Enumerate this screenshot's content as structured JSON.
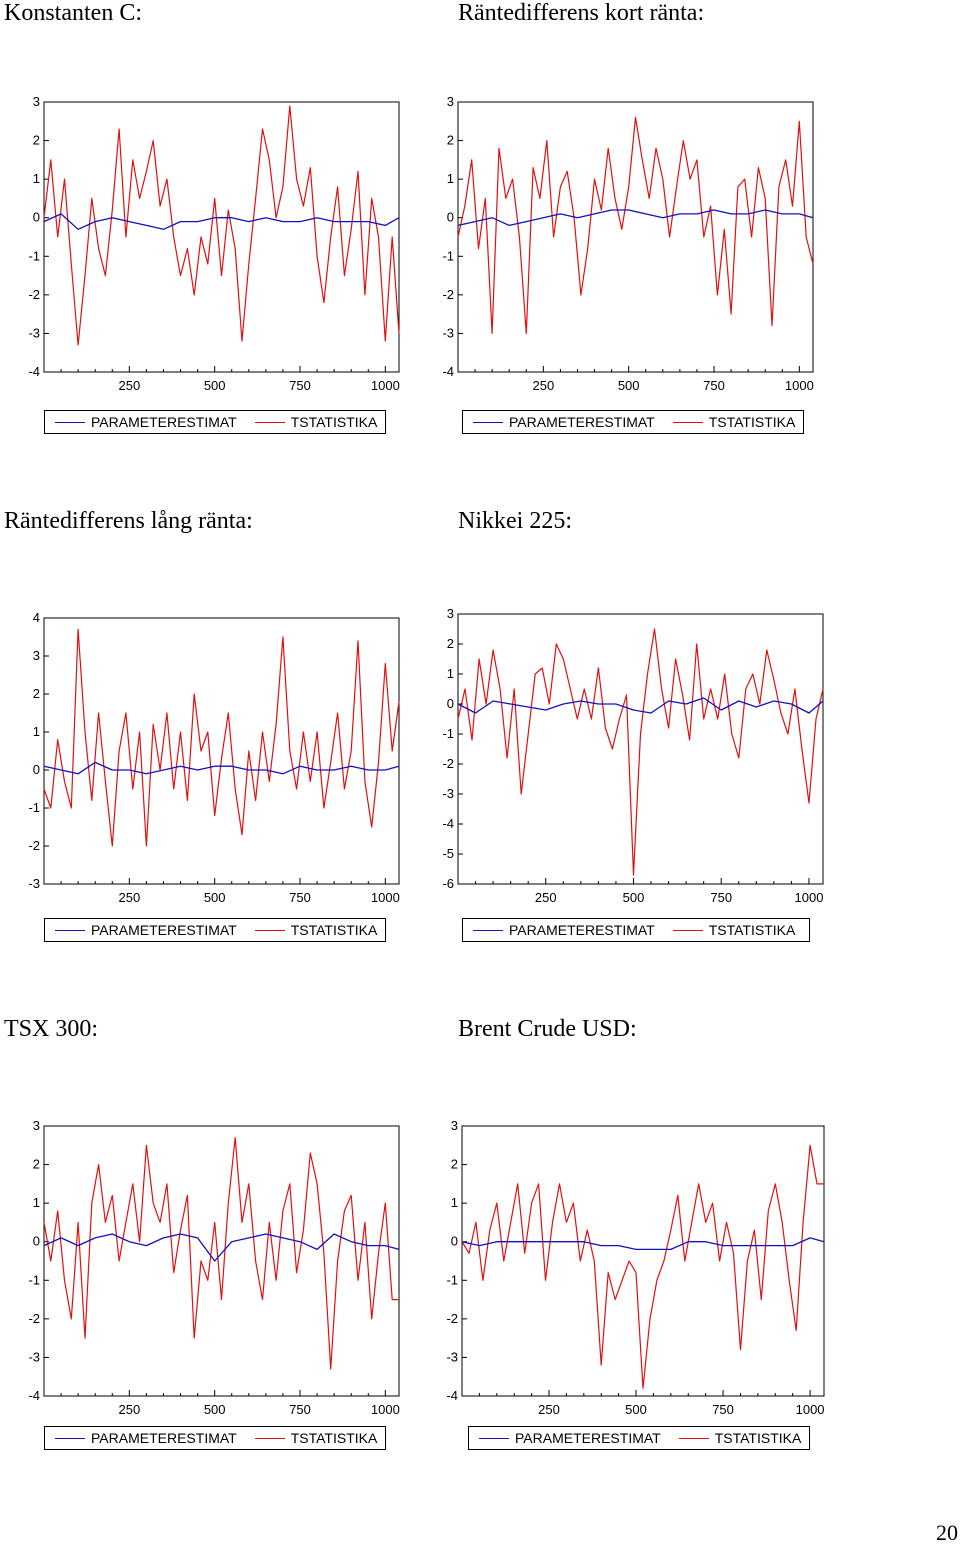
{
  "page": {
    "number": "20"
  },
  "legend": {
    "param_label": "PARAMETERESTIMAT",
    "tstat_label": "TSTATISTIKA"
  },
  "colors": {
    "param": "#1010c0",
    "tstat": "#e01010",
    "axis": "#000000"
  },
  "chart_data": [
    {
      "title": "Konstanten C:",
      "type": "line",
      "xticks": [
        250,
        500,
        750,
        1000
      ],
      "xlim": [
        0,
        1040
      ],
      "ylim": [
        -4,
        3
      ],
      "yticks": [
        3,
        2,
        1,
        0,
        -1,
        -2,
        -3,
        -4
      ],
      "series": [
        {
          "name": "PARAMETERESTIMAT",
          "x": [
            0,
            50,
            100,
            150,
            200,
            250,
            300,
            350,
            400,
            450,
            500,
            550,
            600,
            650,
            700,
            750,
            800,
            850,
            900,
            950,
            1000,
            1040
          ],
          "values": [
            -0.1,
            0.1,
            -0.3,
            -0.1,
            0.0,
            -0.1,
            -0.2,
            -0.3,
            -0.1,
            -0.1,
            0.0,
            0.0,
            -0.1,
            0.0,
            -0.1,
            -0.1,
            0.0,
            -0.1,
            -0.1,
            -0.1,
            -0.2,
            0.0
          ]
        },
        {
          "name": "TSTATISTIKA",
          "x": [
            0,
            20,
            40,
            60,
            80,
            100,
            120,
            140,
            160,
            180,
            200,
            220,
            240,
            260,
            280,
            300,
            320,
            340,
            360,
            380,
            400,
            420,
            440,
            460,
            480,
            500,
            520,
            540,
            560,
            580,
            600,
            620,
            640,
            660,
            680,
            700,
            720,
            740,
            760,
            780,
            800,
            820,
            840,
            860,
            880,
            900,
            920,
            940,
            960,
            980,
            1000,
            1020,
            1040
          ],
          "values": [
            0.0,
            1.5,
            -0.5,
            1.0,
            -1.2,
            -3.3,
            -1.5,
            0.5,
            -0.8,
            -1.5,
            0.2,
            2.3,
            -0.5,
            1.5,
            0.5,
            1.2,
            2.0,
            0.3,
            1.0,
            -0.5,
            -1.5,
            -0.8,
            -2.0,
            -0.5,
            -1.2,
            0.5,
            -1.5,
            0.2,
            -0.8,
            -3.2,
            -1.2,
            0.5,
            2.3,
            1.5,
            0.0,
            0.8,
            2.9,
            1.0,
            0.3,
            1.3,
            -1.0,
            -2.2,
            -0.5,
            0.8,
            -1.5,
            -0.3,
            1.2,
            -2.0,
            0.5,
            -0.5,
            -3.2,
            -0.5,
            -3.0
          ]
        }
      ]
    },
    {
      "title": "Räntedifferens kort ränta:",
      "type": "line",
      "xticks": [
        250,
        500,
        750,
        1000
      ],
      "xlim": [
        0,
        1040
      ],
      "ylim": [
        -4,
        3
      ],
      "yticks": [
        3,
        2,
        1,
        0,
        -1,
        -2,
        -3,
        -4
      ],
      "series": [
        {
          "name": "PARAMETERESTIMAT",
          "x": [
            0,
            50,
            100,
            150,
            200,
            250,
            300,
            350,
            400,
            450,
            500,
            550,
            600,
            650,
            700,
            750,
            800,
            850,
            900,
            950,
            1000,
            1040
          ],
          "values": [
            -0.2,
            -0.1,
            0.0,
            -0.2,
            -0.1,
            0.0,
            0.1,
            0.0,
            0.1,
            0.2,
            0.2,
            0.1,
            0.0,
            0.1,
            0.1,
            0.2,
            0.1,
            0.1,
            0.2,
            0.1,
            0.1,
            0.0
          ]
        },
        {
          "name": "TSTATISTIKA",
          "x": [
            0,
            20,
            40,
            60,
            80,
            100,
            120,
            140,
            160,
            180,
            200,
            220,
            240,
            260,
            280,
            300,
            320,
            340,
            360,
            380,
            400,
            420,
            440,
            460,
            480,
            500,
            520,
            540,
            560,
            580,
            600,
            620,
            640,
            660,
            680,
            700,
            720,
            740,
            760,
            780,
            800,
            820,
            840,
            860,
            880,
            900,
            920,
            940,
            960,
            980,
            1000,
            1020,
            1040
          ],
          "values": [
            -0.5,
            0.3,
            1.5,
            -0.8,
            0.5,
            -3.0,
            1.8,
            0.5,
            1.0,
            -0.5,
            -3.0,
            1.3,
            0.5,
            2.0,
            -0.5,
            0.8,
            1.2,
            0.0,
            -2.0,
            -0.8,
            1.0,
            0.2,
            1.8,
            0.5,
            -0.3,
            0.8,
            2.6,
            1.5,
            0.5,
            1.8,
            1.0,
            -0.5,
            0.8,
            2.0,
            1.0,
            1.5,
            -0.5,
            0.3,
            -2.0,
            -0.3,
            -2.5,
            0.8,
            1.0,
            -0.5,
            1.3,
            0.5,
            -2.8,
            0.8,
            1.5,
            0.3,
            2.5,
            -0.5,
            -1.2
          ]
        }
      ]
    },
    {
      "title": "Räntedifferens lång ränta:",
      "type": "line",
      "xticks": [
        250,
        500,
        750,
        1000
      ],
      "xlim": [
        0,
        1040
      ],
      "ylim": [
        -3,
        4
      ],
      "yticks": [
        4,
        3,
        2,
        1,
        0,
        -1,
        -2,
        -3
      ],
      "series": [
        {
          "name": "PARAMETERESTIMAT",
          "x": [
            0,
            50,
            100,
            150,
            200,
            250,
            300,
            350,
            400,
            450,
            500,
            550,
            600,
            650,
            700,
            750,
            800,
            850,
            900,
            950,
            1000,
            1040
          ],
          "values": [
            0.1,
            0.0,
            -0.1,
            0.2,
            0.0,
            0.0,
            -0.1,
            0.0,
            0.1,
            0.0,
            0.1,
            0.1,
            0.0,
            0.0,
            -0.1,
            0.1,
            0.0,
            0.0,
            0.1,
            0.0,
            0.0,
            0.1
          ]
        },
        {
          "name": "TSTATISTIKA",
          "x": [
            0,
            20,
            40,
            60,
            80,
            100,
            120,
            140,
            160,
            180,
            200,
            220,
            240,
            260,
            280,
            300,
            320,
            340,
            360,
            380,
            400,
            420,
            440,
            460,
            480,
            500,
            520,
            540,
            560,
            580,
            600,
            620,
            640,
            660,
            680,
            700,
            720,
            740,
            760,
            780,
            800,
            820,
            840,
            860,
            880,
            900,
            920,
            940,
            960,
            980,
            1000,
            1020,
            1040
          ],
          "values": [
            -0.5,
            -1.0,
            0.8,
            -0.3,
            -1.0,
            3.7,
            1.0,
            -0.8,
            1.5,
            -0.3,
            -2.0,
            0.5,
            1.5,
            -0.5,
            1.0,
            -2.0,
            1.2,
            0.0,
            1.5,
            -0.5,
            1.0,
            -0.8,
            2.0,
            0.5,
            1.0,
            -1.2,
            0.3,
            1.5,
            -0.5,
            -1.7,
            0.5,
            -0.8,
            1.0,
            -0.3,
            1.2,
            3.5,
            0.5,
            -0.5,
            1.0,
            -0.3,
            1.0,
            -1.0,
            0.2,
            1.5,
            -0.5,
            0.5,
            3.4,
            -0.3,
            -1.5,
            0.2,
            2.8,
            0.5,
            1.8
          ]
        }
      ]
    },
    {
      "title": "Nikkei 225:",
      "type": "line",
      "xticks": [
        250,
        500,
        750,
        1000
      ],
      "xlim": [
        0,
        1040
      ],
      "ylim": [
        -6,
        3
      ],
      "yticks": [
        3,
        2,
        1,
        0,
        -1,
        -2,
        -3,
        -4,
        -5,
        -6
      ],
      "series": [
        {
          "name": "PARAMETERESTIMAT",
          "x": [
            0,
            50,
            100,
            150,
            200,
            250,
            300,
            350,
            400,
            450,
            500,
            550,
            600,
            650,
            700,
            750,
            800,
            850,
            900,
            950,
            1000,
            1040
          ],
          "values": [
            0.0,
            -0.3,
            0.1,
            0.0,
            -0.1,
            -0.2,
            0.0,
            0.1,
            0.0,
            0.0,
            -0.2,
            -0.3,
            0.1,
            0.0,
            0.2,
            -0.2,
            0.1,
            -0.1,
            0.1,
            0.0,
            -0.3,
            0.1
          ]
        },
        {
          "name": "TSTATISTIKA",
          "x": [
            0,
            20,
            40,
            60,
            80,
            100,
            120,
            140,
            160,
            180,
            200,
            220,
            240,
            260,
            280,
            300,
            320,
            340,
            360,
            380,
            400,
            420,
            440,
            460,
            480,
            500,
            520,
            540,
            560,
            580,
            600,
            620,
            640,
            660,
            680,
            700,
            720,
            740,
            760,
            780,
            800,
            820,
            840,
            860,
            880,
            900,
            920,
            940,
            960,
            980,
            1000,
            1020,
            1040
          ],
          "values": [
            -0.5,
            0.5,
            -1.2,
            1.5,
            0.0,
            1.8,
            0.5,
            -1.8,
            0.5,
            -3.0,
            -1.0,
            1.0,
            1.2,
            0.0,
            2.0,
            1.5,
            0.5,
            -0.5,
            0.5,
            -0.5,
            1.2,
            -0.8,
            -1.5,
            -0.5,
            0.3,
            -5.7,
            -1.0,
            1.0,
            2.5,
            0.5,
            -0.8,
            1.5,
            0.3,
            -1.2,
            2.0,
            -0.5,
            0.5,
            -0.5,
            1.0,
            -1.0,
            -1.8,
            0.5,
            1.0,
            0.0,
            1.8,
            0.8,
            -0.3,
            -1.0,
            0.5,
            -1.5,
            -3.3,
            -0.5,
            0.5
          ]
        }
      ]
    },
    {
      "title": "TSX 300:",
      "type": "line",
      "xticks": [
        250,
        500,
        750,
        1000
      ],
      "xlim": [
        0,
        1040
      ],
      "ylim": [
        -4,
        3
      ],
      "yticks": [
        3,
        2,
        1,
        0,
        -1,
        -2,
        -3,
        -4
      ],
      "series": [
        {
          "name": "PARAMETERESTIMAT",
          "x": [
            0,
            50,
            100,
            150,
            200,
            250,
            300,
            350,
            400,
            450,
            500,
            550,
            600,
            650,
            700,
            750,
            800,
            850,
            900,
            950,
            1000,
            1040
          ],
          "values": [
            -0.1,
            0.1,
            -0.1,
            0.1,
            0.2,
            0.0,
            -0.1,
            0.1,
            0.2,
            0.1,
            -0.5,
            0.0,
            0.1,
            0.2,
            0.1,
            0.0,
            -0.2,
            0.2,
            0.0,
            -0.1,
            -0.1,
            -0.2
          ]
        },
        {
          "name": "TSTATISTIKA",
          "x": [
            0,
            20,
            40,
            60,
            80,
            100,
            120,
            140,
            160,
            180,
            200,
            220,
            240,
            260,
            280,
            300,
            320,
            340,
            360,
            380,
            400,
            420,
            440,
            460,
            480,
            500,
            520,
            540,
            560,
            580,
            600,
            620,
            640,
            660,
            680,
            700,
            720,
            740,
            760,
            780,
            800,
            820,
            840,
            860,
            880,
            900,
            920,
            940,
            960,
            980,
            1000,
            1020,
            1040
          ],
          "values": [
            0.5,
            -0.5,
            0.8,
            -1.0,
            -2.0,
            0.5,
            -2.5,
            1.0,
            2.0,
            0.5,
            1.2,
            -0.5,
            0.5,
            1.5,
            0.0,
            2.5,
            1.0,
            0.5,
            1.5,
            -0.8,
            0.3,
            1.2,
            -2.5,
            -0.5,
            -1.0,
            0.5,
            -1.5,
            1.0,
            2.7,
            0.5,
            1.5,
            -0.5,
            -1.5,
            0.5,
            -1.0,
            0.8,
            1.5,
            -0.8,
            0.3,
            2.3,
            1.5,
            -0.3,
            -3.3,
            -0.5,
            0.8,
            1.2,
            -1.0,
            0.5,
            -2.0,
            -0.3,
            1.0,
            -1.5,
            -1.5
          ]
        }
      ]
    },
    {
      "title": "Brent Crude USD:",
      "type": "line",
      "xticks": [
        250,
        500,
        750,
        1000
      ],
      "xlim": [
        0,
        1040
      ],
      "ylim": [
        -4,
        3
      ],
      "yticks": [
        3,
        2,
        1,
        0,
        -1,
        -2,
        -3,
        -4
      ],
      "series": [
        {
          "name": "PARAMETERESTIMAT",
          "x": [
            0,
            50,
            100,
            150,
            200,
            250,
            300,
            350,
            400,
            450,
            500,
            550,
            600,
            650,
            700,
            750,
            800,
            850,
            900,
            950,
            1000,
            1040
          ],
          "values": [
            0.0,
            -0.1,
            0.0,
            0.0,
            0.0,
            0.0,
            0.0,
            0.0,
            -0.1,
            -0.1,
            -0.2,
            -0.2,
            -0.2,
            0.0,
            0.0,
            -0.1,
            -0.1,
            -0.1,
            -0.1,
            -0.1,
            0.1,
            0.0
          ]
        },
        {
          "name": "TSTATISTIKA",
          "x": [
            0,
            20,
            40,
            60,
            80,
            100,
            120,
            140,
            160,
            180,
            200,
            220,
            240,
            260,
            280,
            300,
            320,
            340,
            360,
            380,
            400,
            420,
            440,
            460,
            480,
            500,
            520,
            540,
            560,
            580,
            600,
            620,
            640,
            660,
            680,
            700,
            720,
            740,
            760,
            780,
            800,
            820,
            840,
            860,
            880,
            900,
            920,
            940,
            960,
            980,
            1000,
            1020,
            1040
          ],
          "values": [
            0.0,
            -0.3,
            0.5,
            -1.0,
            0.3,
            1.0,
            -0.5,
            0.5,
            1.5,
            -0.3,
            1.0,
            1.5,
            -1.0,
            0.5,
            1.5,
            0.5,
            1.0,
            -0.5,
            0.3,
            -0.5,
            -3.2,
            -0.8,
            -1.5,
            -1.0,
            -0.5,
            -0.8,
            -3.8,
            -2.0,
            -1.0,
            -0.5,
            0.3,
            1.2,
            -0.5,
            0.5,
            1.5,
            0.5,
            1.0,
            -0.5,
            0.5,
            -0.3,
            -2.8,
            -0.5,
            0.3,
            -1.5,
            0.8,
            1.5,
            0.5,
            -1.0,
            -2.3,
            0.5,
            2.5,
            1.5,
            1.5
          ]
        }
      ]
    }
  ]
}
